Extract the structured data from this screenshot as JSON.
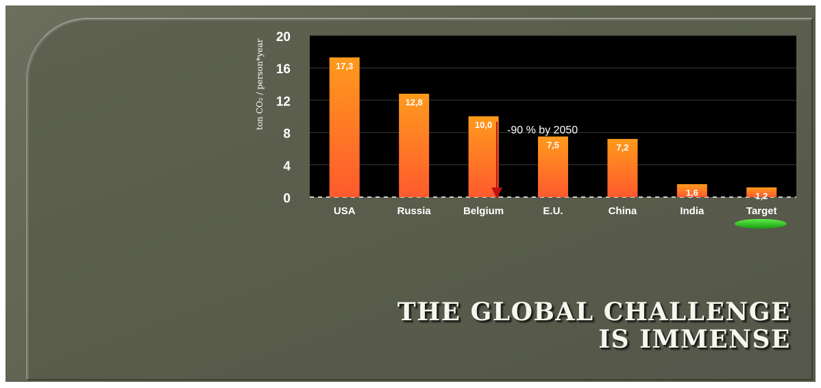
{
  "slide": {
    "title_line1": "THE GLOBAL CHALLENGE",
    "title_line2": "IS IMMENSE"
  },
  "chart_data": {
    "type": "bar",
    "categories": [
      "USA",
      "Russia",
      "Belgium",
      "E.U.",
      "China",
      "India",
      "Target"
    ],
    "values": [
      17.3,
      12.8,
      10.0,
      7.5,
      7.2,
      1.6,
      1.2
    ],
    "value_labels": [
      "17,3",
      "12,8",
      "10,0",
      "7,5",
      "7,2",
      "1,6",
      "1,2"
    ],
    "ylabel": "ton CO₂ / person*year",
    "ylim": [
      0,
      20
    ],
    "yticks": [
      0,
      4,
      8,
      12,
      16,
      20
    ],
    "grid": true,
    "annotation": "-90 % by 2050",
    "highlighted_category": "Target",
    "colors": {
      "bar_top": "#ff9a1c",
      "bar_bottom": "#ff5a2e",
      "plot_bg": "#000000",
      "highlight": "#22c414",
      "arrow": "#c01010"
    }
  }
}
